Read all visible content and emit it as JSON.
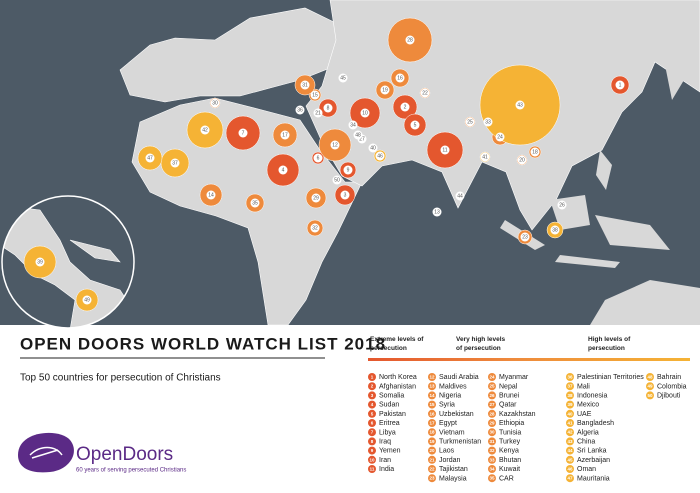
{
  "title": "OPEN DOORS WORLD WATCH LIST 2018",
  "subtitle": "Top 50 countries for persecution of Christians",
  "levels": [
    {
      "label": "Extreme levels of persecution",
      "color": "#e4572e"
    },
    {
      "label": "Very high levels of persecution",
      "color": "#ee8a3c"
    },
    {
      "label": "High levels of persecution",
      "color": "#f5b335"
    }
  ],
  "countries": [
    {
      "rank": 1,
      "name": "North Korea",
      "level": 0
    },
    {
      "rank": 2,
      "name": "Afghanistan",
      "level": 0
    },
    {
      "rank": 3,
      "name": "Somalia",
      "level": 0
    },
    {
      "rank": 4,
      "name": "Sudan",
      "level": 0
    },
    {
      "rank": 5,
      "name": "Pakistan",
      "level": 0
    },
    {
      "rank": 6,
      "name": "Eritrea",
      "level": 0
    },
    {
      "rank": 7,
      "name": "Libya",
      "level": 0
    },
    {
      "rank": 8,
      "name": "Iraq",
      "level": 0
    },
    {
      "rank": 9,
      "name": "Yemen",
      "level": 0
    },
    {
      "rank": 10,
      "name": "Iran",
      "level": 0
    },
    {
      "rank": 11,
      "name": "India",
      "level": 0
    },
    {
      "rank": 12,
      "name": "Saudi Arabia",
      "level": 1
    },
    {
      "rank": 13,
      "name": "Maldives",
      "level": 1
    },
    {
      "rank": 14,
      "name": "Nigeria",
      "level": 1
    },
    {
      "rank": 15,
      "name": "Syria",
      "level": 1
    },
    {
      "rank": 16,
      "name": "Uzbekistan",
      "level": 1
    },
    {
      "rank": 17,
      "name": "Egypt",
      "level": 1
    },
    {
      "rank": 18,
      "name": "Vietnam",
      "level": 1
    },
    {
      "rank": 19,
      "name": "Turkmenistan",
      "level": 1
    },
    {
      "rank": 20,
      "name": "Laos",
      "level": 1
    },
    {
      "rank": 21,
      "name": "Jordan",
      "level": 1
    },
    {
      "rank": 22,
      "name": "Tajikistan",
      "level": 1
    },
    {
      "rank": 23,
      "name": "Malaysia",
      "level": 1
    },
    {
      "rank": 24,
      "name": "Myanmar",
      "level": 1
    },
    {
      "rank": 25,
      "name": "Nepal",
      "level": 1
    },
    {
      "rank": 26,
      "name": "Brunei",
      "level": 1
    },
    {
      "rank": 27,
      "name": "Qatar",
      "level": 1
    },
    {
      "rank": 28,
      "name": "Kazakhstan",
      "level": 1
    },
    {
      "rank": 29,
      "name": "Ethiopia",
      "level": 1
    },
    {
      "rank": 30,
      "name": "Tunisia",
      "level": 1
    },
    {
      "rank": 31,
      "name": "Turkey",
      "level": 1
    },
    {
      "rank": 32,
      "name": "Kenya",
      "level": 1
    },
    {
      "rank": 33,
      "name": "Bhutan",
      "level": 1
    },
    {
      "rank": 34,
      "name": "Kuwait",
      "level": 1
    },
    {
      "rank": 35,
      "name": "CAR",
      "level": 1
    },
    {
      "rank": 36,
      "name": "Palestinian Territories",
      "level": 2
    },
    {
      "rank": 37,
      "name": "Mali",
      "level": 2
    },
    {
      "rank": 38,
      "name": "Indonesia",
      "level": 2
    },
    {
      "rank": 39,
      "name": "Mexico",
      "level": 2
    },
    {
      "rank": 40,
      "name": "UAE",
      "level": 2
    },
    {
      "rank": 41,
      "name": "Bangladesh",
      "level": 2
    },
    {
      "rank": 42,
      "name": "Algeria",
      "level": 2
    },
    {
      "rank": 43,
      "name": "China",
      "level": 2
    },
    {
      "rank": 44,
      "name": "Sri Lanka",
      "level": 2
    },
    {
      "rank": 45,
      "name": "Azerbaijan",
      "level": 2
    },
    {
      "rank": 46,
      "name": "Oman",
      "level": 2
    },
    {
      "rank": 47,
      "name": "Mauritania",
      "level": 2
    },
    {
      "rank": 48,
      "name": "Bahrain",
      "level": 2
    },
    {
      "rank": 49,
      "name": "Colombia",
      "level": 2
    },
    {
      "rank": 50,
      "name": "Djibouti",
      "level": 2
    }
  ],
  "logo": {
    "name": "OpenDoors",
    "tagline": "60 years of serving persecuted Christians"
  }
}
